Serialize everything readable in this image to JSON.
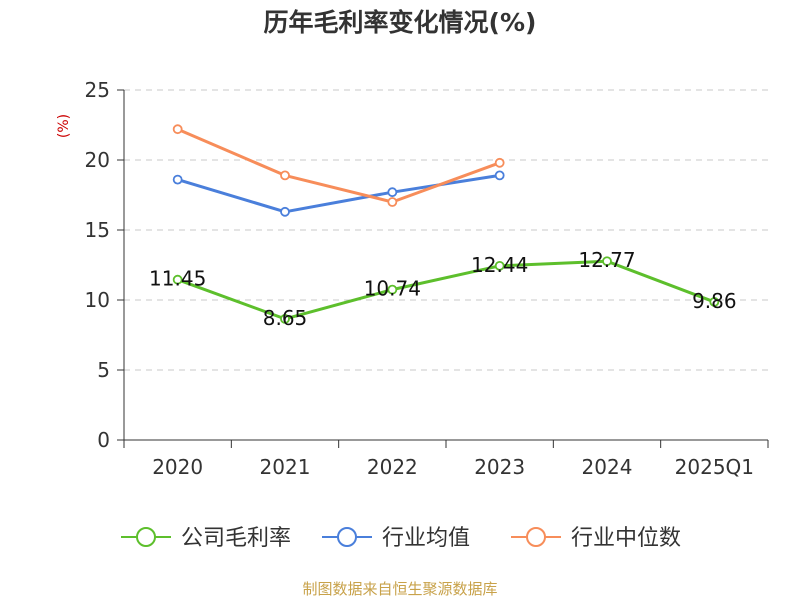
{
  "chart_data": {
    "type": "line",
    "title": "历年毛利率变化情况(%)",
    "ylabel": "(%)",
    "categories": [
      "2020",
      "2021",
      "2022",
      "2023",
      "2024",
      "2025Q1"
    ],
    "ylim": [
      0,
      25
    ],
    "yticks": [
      0,
      5,
      10,
      15,
      20,
      25
    ],
    "grid": true,
    "legend_position": "bottom",
    "series": [
      {
        "name": "公司毛利率",
        "color": "#5dbf2c",
        "values": [
          11.45,
          8.65,
          10.74,
          12.44,
          12.77,
          9.86
        ],
        "labels": [
          "11.45",
          "8.65",
          "10.74",
          "12.44",
          "12.77",
          "9.86"
        ]
      },
      {
        "name": "行业均值",
        "color": "#4a7fdb",
        "values": [
          18.6,
          16.3,
          17.7,
          18.9,
          null,
          null
        ],
        "labels": []
      },
      {
        "name": "行业中位数",
        "color": "#f78d5a",
        "values": [
          22.2,
          18.9,
          17.0,
          19.8,
          null,
          null
        ],
        "labels": []
      }
    ]
  },
  "source": "制图数据来自恒生聚源数据库"
}
